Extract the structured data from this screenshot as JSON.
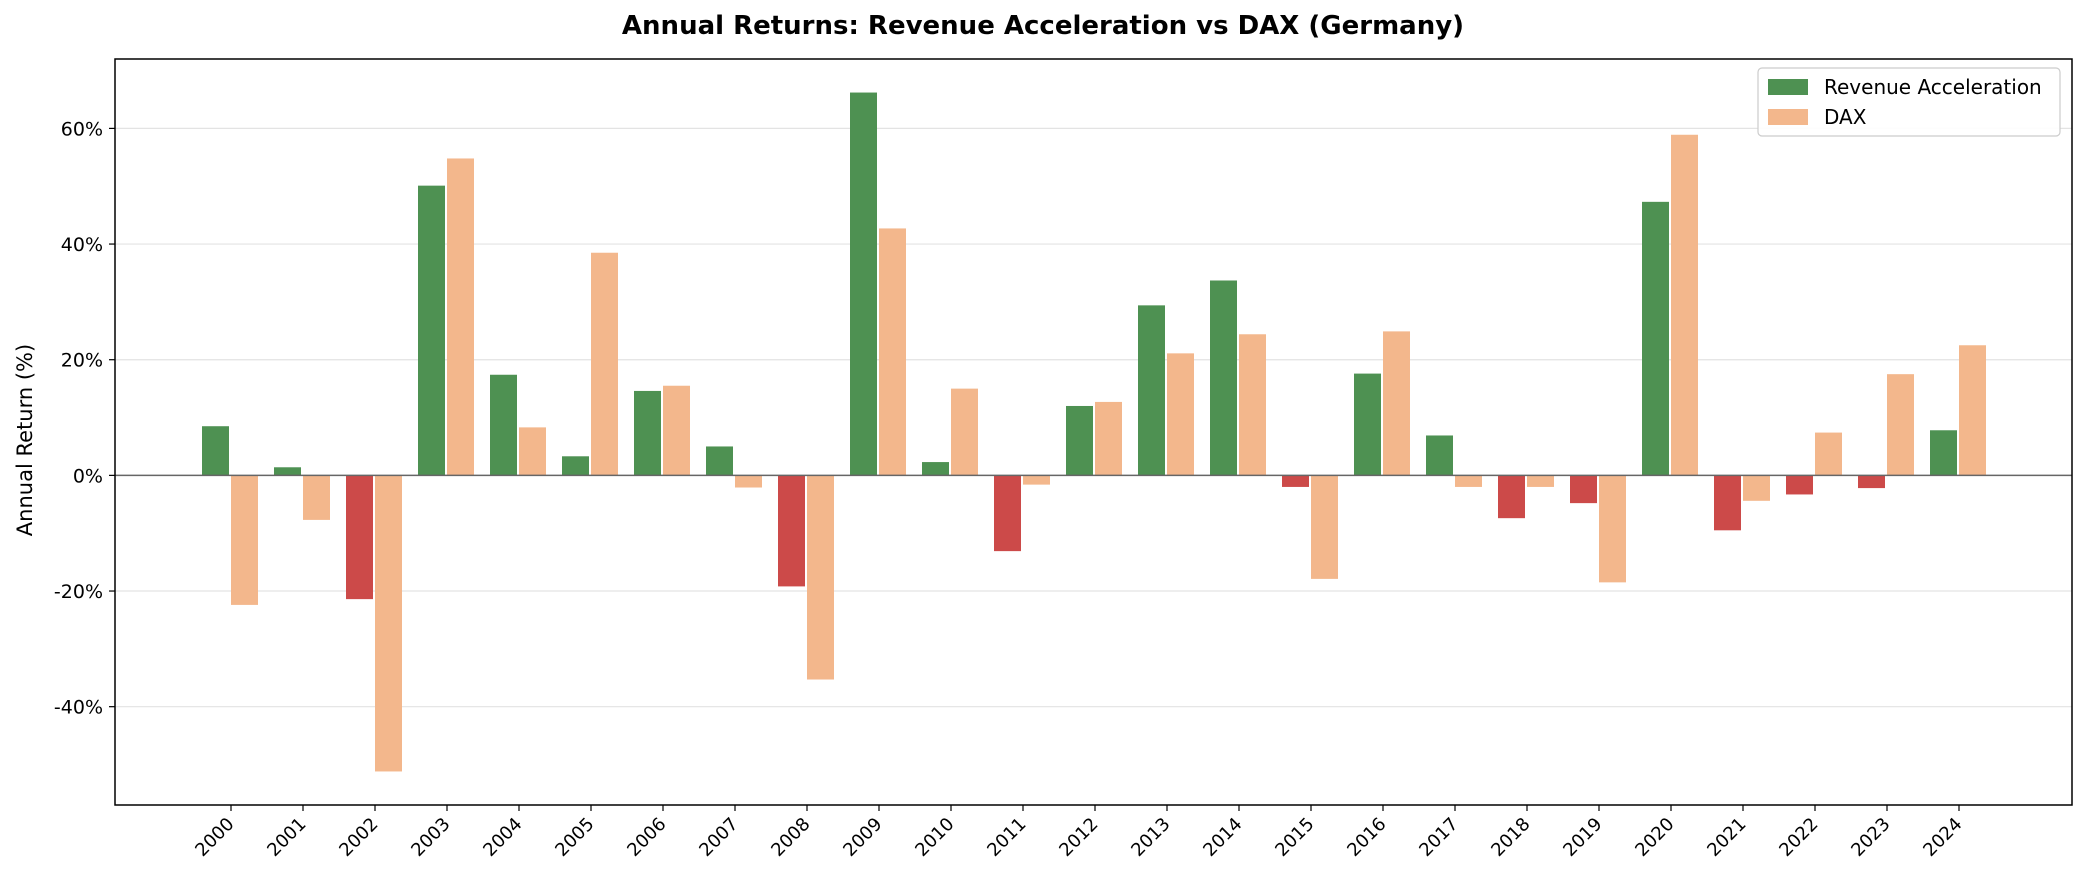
{
  "chart_data": {
    "type": "bar",
    "title": "Annual Returns: Revenue Acceleration vs DAX (Germany)",
    "xlabel": "",
    "ylabel": "Annual Return (%)",
    "ylim": [
      -57,
      72
    ],
    "yticks": [
      -40,
      -20,
      0,
      20,
      40,
      60
    ],
    "ytick_labels": [
      "-40%",
      "-20%",
      "0%",
      "20%",
      "40%",
      "60%"
    ],
    "grid": "horizontal",
    "legend_position": "top-right",
    "categories": [
      "2000",
      "2001",
      "2002",
      "2003",
      "2004",
      "2005",
      "2006",
      "2007",
      "2008",
      "2009",
      "2010",
      "2011",
      "2012",
      "2013",
      "2014",
      "2015",
      "2016",
      "2017",
      "2018",
      "2019",
      "2020",
      "2021",
      "2022",
      "2023",
      "2024"
    ],
    "series": [
      {
        "name": "Revenue Acceleration",
        "color": "#4e9152",
        "negative_color": "#cc4a49",
        "values": [
          8.5,
          1.4,
          -21.4,
          50.1,
          17.4,
          3.3,
          14.6,
          5.0,
          -19.2,
          66.2,
          2.3,
          -13.1,
          12.0,
          29.4,
          33.7,
          -2.0,
          17.6,
          6.9,
          -7.4,
          -4.8,
          47.3,
          -9.5,
          -3.3,
          -2.2,
          7.8
        ]
      },
      {
        "name": "DAX",
        "color": "#f3b78c",
        "values": [
          -22.4,
          -7.7,
          -51.2,
          54.8,
          8.3,
          38.5,
          15.5,
          -2.1,
          -35.3,
          42.7,
          15.0,
          -1.6,
          12.7,
          21.1,
          24.4,
          -17.9,
          24.9,
          -2.0,
          -2.0,
          -18.5,
          58.9,
          -4.4,
          7.4,
          17.5,
          22.5
        ]
      }
    ]
  }
}
